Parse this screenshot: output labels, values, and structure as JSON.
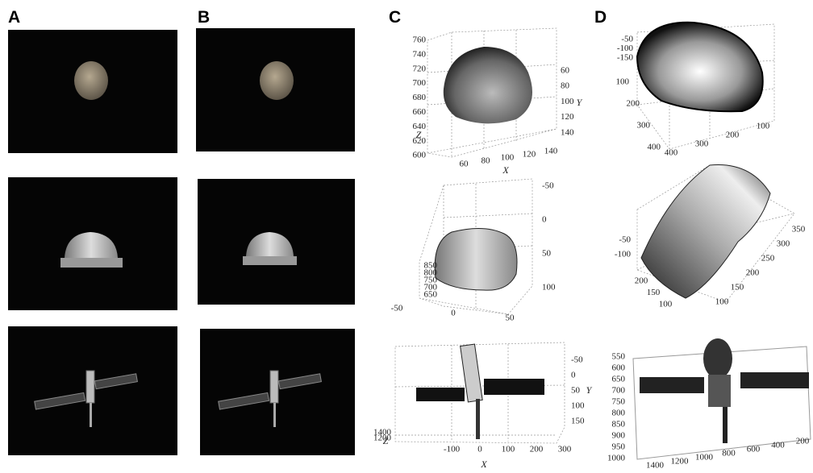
{
  "panel_labels": [
    "A",
    "B",
    "C",
    "D"
  ],
  "plots": [
    {
      "axes": [
        {
          "labels": [
            760,
            740,
            720,
            700,
            680,
            660,
            640,
            620,
            600
          ]
        },
        {
          "labels": [
            60,
            80,
            100,
            120,
            140
          ]
        },
        {
          "labels": [
            60,
            80,
            100,
            120,
            140
          ]
        }
      ],
      "axis_titles": [
        "Z",
        "Y",
        "X"
      ]
    },
    {
      "axes": [
        {
          "labels": [
            850,
            800,
            750,
            700,
            650
          ]
        },
        {
          "labels": [
            -50,
            0,
            50
          ]
        },
        {
          "labels": [
            -50,
            0,
            50,
            100
          ]
        }
      ],
      "axis_titles": []
    },
    {
      "axes": [
        {
          "labels": [
            -50,
            0,
            50,
            100,
            150
          ]
        },
        {
          "labels": [
            -100,
            0,
            100,
            200,
            300
          ]
        },
        {
          "labels": [
            1400,
            1200
          ]
        }
      ],
      "axis_titles": [
        "Y",
        "X",
        "Z"
      ]
    },
    {
      "axes": [
        {
          "labels": [
            -50,
            -100,
            -150
          ]
        },
        {
          "labels": [
            100,
            200,
            300,
            400
          ]
        },
        {
          "labels": [
            400,
            300,
            200,
            100
          ]
        }
      ],
      "axis_titles": []
    },
    {
      "axes": [
        {
          "labels": [
            -50,
            -100
          ]
        },
        {
          "labels": [
            200,
            150,
            100
          ]
        },
        {
          "labels": [
            350,
            300,
            250,
            200,
            150,
            100
          ]
        }
      ],
      "axis_titles": []
    },
    {
      "axes": [
        {
          "labels": [
            550,
            600,
            650,
            700,
            750,
            800,
            850,
            900,
            950,
            1000
          ]
        },
        {
          "labels": [
            1400,
            1200,
            1000,
            800,
            600,
            400,
            200
          ]
        }
      ],
      "axis_titles": []
    }
  ]
}
